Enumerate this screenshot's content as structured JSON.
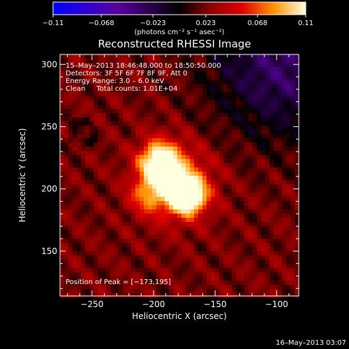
{
  "chart_data": {
    "type": "heatmap",
    "title": "Reconstructed RHESSI Image",
    "xlabel": "Heliocentric X (arcsec)",
    "ylabel": "Heliocentric Y (arcsec)",
    "xlim": [
      -276,
      -82
    ],
    "ylim": [
      114,
      308
    ],
    "xticks": [
      -250,
      -200,
      -150,
      -100
    ],
    "yticks": [
      150,
      200,
      250,
      300
    ],
    "xtick_labels": [
      "−250",
      "−200",
      "−150",
      "−100"
    ],
    "ytick_labels": [
      "150",
      "200",
      "250",
      "300"
    ],
    "colorbar": {
      "range": [
        -0.11,
        0.11
      ],
      "ticks": [
        -0.11,
        -0.068,
        -0.023,
        0.023,
        0.068,
        0.11
      ],
      "tick_labels": [
        "−0.11",
        "−0.068",
        "−0.023",
        "0.023",
        "0.068",
        "0.11"
      ],
      "units": "(photons cm⁻² s⁻¹ asec⁻²)"
    },
    "annotations": [
      "15–May–2013 18:46:48.000 to 18:50:50.000",
      "Detectors: 3F 5F 6F 7F 8F 9F, Att 0",
      "Energy Range: 3.0 – 6.0 keV",
      "Clean     Total counts: 1.01E+04"
    ],
    "peak_label": "Position of Peak = [−173,195]",
    "peak": [
      -173,
      195
    ],
    "sources": [
      {
        "x": -173,
        "y": 195,
        "amp": 0.11,
        "sigma": 10
      },
      {
        "x": -195,
        "y": 222,
        "amp": 0.095,
        "sigma": 11
      },
      {
        "x": -182,
        "y": 205,
        "amp": 0.06,
        "sigma": 20
      },
      {
        "x": -205,
        "y": 195,
        "amp": 0.04,
        "sigma": 10
      }
    ],
    "footer": "16–May–2013 03:07"
  }
}
